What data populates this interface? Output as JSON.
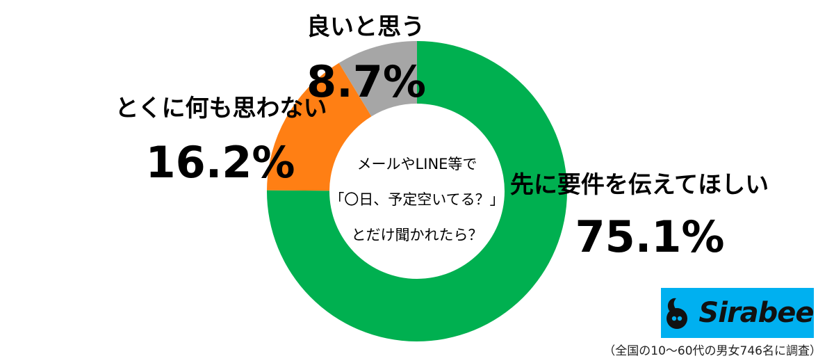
{
  "chart_data": {
    "type": "pie",
    "donut": true,
    "center_lines": [
      "メールやLINE等で",
      "「〇日、予定空いてる？」",
      "とだけ聞かれたら？"
    ],
    "slices": [
      {
        "label": "先に要件を伝えてほしい",
        "value": 75.1,
        "value_text": "75.1%",
        "color": "#00b050"
      },
      {
        "label": "とくに何も思わない",
        "value": 16.2,
        "value_text": "16.2%",
        "color": "#ff7f14"
      },
      {
        "label": "良いと思う",
        "value": 8.7,
        "value_text": "8.7%",
        "color": "#a6a6a6"
      }
    ]
  },
  "brand": {
    "name": "Sirabee",
    "bg_color": "#00b0f0"
  },
  "footnote": "（全国の10〜60代の男女746名に調査）"
}
